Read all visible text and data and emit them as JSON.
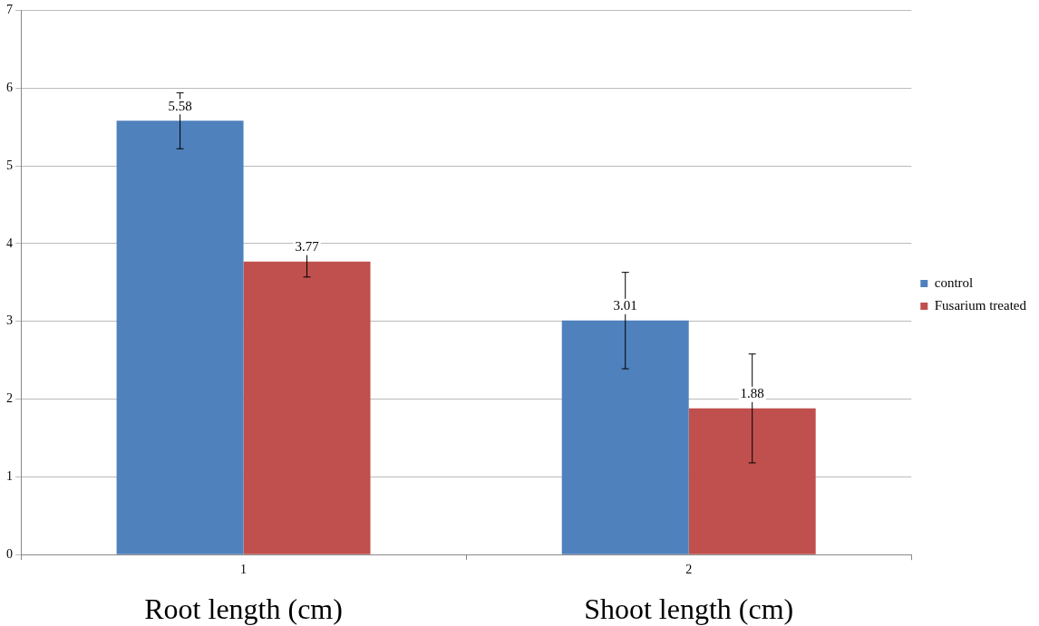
{
  "chart_data": {
    "type": "bar",
    "categories": [
      "1",
      "2"
    ],
    "series": [
      {
        "name": "control",
        "color": "#4f81bd",
        "values": [
          5.58,
          3.01
        ],
        "errors": [
          0.36,
          0.62
        ]
      },
      {
        "name": "Fusarium treated",
        "color": "#c0504d",
        "values": [
          3.77,
          1.88
        ],
        "errors": [
          0.2,
          0.7
        ]
      }
    ],
    "ylim": [
      0,
      7
    ],
    "yticks": [
      0,
      1,
      2,
      3,
      4,
      5,
      6,
      7
    ],
    "grid": "y",
    "legend": "right",
    "data_labels": true,
    "annotations": [
      "Root length (cm)",
      "Shoot length (cm)"
    ]
  }
}
